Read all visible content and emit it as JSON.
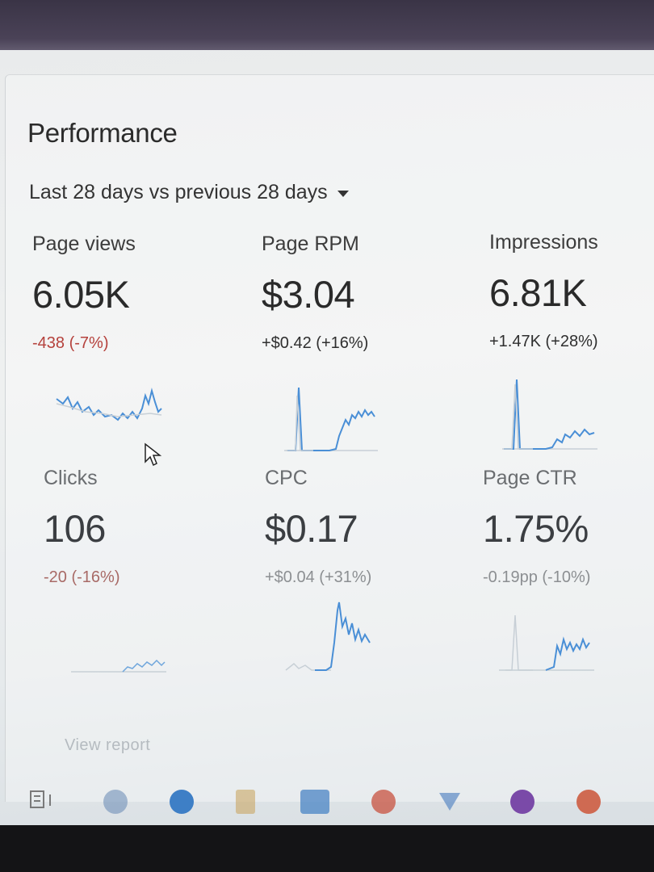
{
  "performance": {
    "title": "Performance",
    "range": "Last 28 days vs previous 28 days"
  },
  "metrics": [
    {
      "label": "Page views",
      "value": "6.05K",
      "delta": "-438 (-7%)",
      "trend": "negative"
    },
    {
      "label": "Page RPM",
      "value": "$3.04",
      "delta": "+$0.42 (+16%)",
      "trend": "positive"
    },
    {
      "label": "Impressions",
      "value": "6.81K",
      "delta": "+1.47K (+28%)",
      "trend": "positive"
    },
    {
      "label": "Clicks",
      "value": "106",
      "delta": "-20 (-16%)",
      "trend": "negative"
    },
    {
      "label": "CPC",
      "value": "$0.17",
      "delta": "+$0.04 (+31%)",
      "trend": "positive"
    },
    {
      "label": "Page CTR",
      "value": "1.75%",
      "delta": "-0.19pp (-10%)",
      "trend": "negative"
    }
  ],
  "footer": {
    "view_report": "View report"
  },
  "colors": {
    "line": "#4a8fd6",
    "previous": "#c7cfd6",
    "negative": "#b5413c"
  },
  "taskbar_icons": [
    "task-view-icon",
    "edge-icon",
    "app-icon",
    "file-icon",
    "app-icon",
    "chrome-icon",
    "app-icon",
    "app-icon",
    "chrome-icon"
  ]
}
